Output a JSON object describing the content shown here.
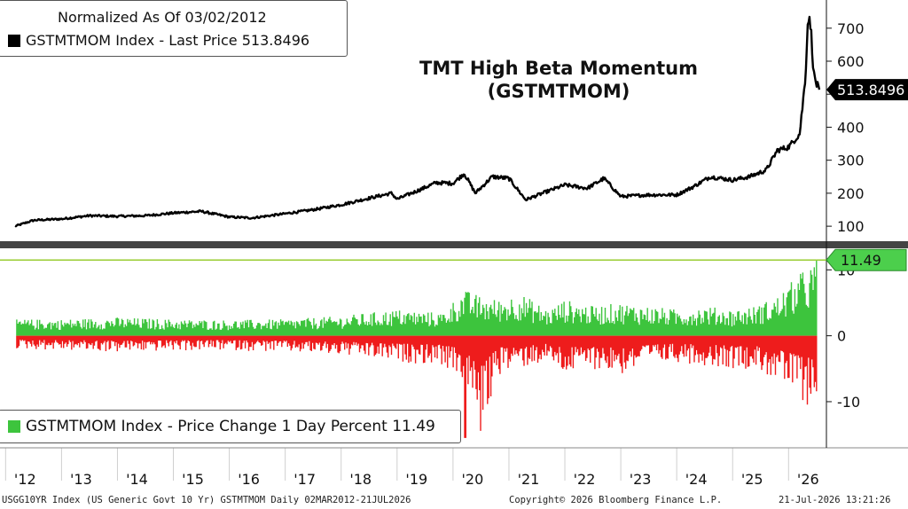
{
  "legend_top": {
    "line1": "Normalized As Of 03/02/2012",
    "line2": "GSTMTMOM Index - Last Price 513.8496"
  },
  "legend_bottom": {
    "line1": "GSTMTMOM Index - Price Change 1 Day Percent 11.49"
  },
  "footer": {
    "left": "USGG10YR Index (US Generic Govt 10 Yr) GSTMTMOM Daily 02MAR2012-21JUL2026",
    "center": "Copyright© 2026 Bloomberg Finance L.P.",
    "right": "21-Jul-2026 13:21:26"
  },
  "colors": {
    "price_line": "#000000",
    "up_bars": "#3dc43d",
    "down_bars": "#ee1c1c",
    "last_value_marker": "#000000",
    "change_marker": "#4ccf4c",
    "reference_line": "#9acd32",
    "divider": "#444444"
  },
  "chart_data": [
    {
      "type": "line",
      "title": "TMT High Beta Momentum",
      "subtitle": "(GSTMTMOM)",
      "series": [
        {
          "name": "GSTMTMOM Index - Last Price",
          "x": [
            2012.17,
            2012.5,
            2013.0,
            2013.5,
            2014.0,
            2014.5,
            2015.0,
            2015.5,
            2016.0,
            2016.4,
            2017.0,
            2017.5,
            2018.0,
            2018.5,
            2018.9,
            2019.0,
            2019.4,
            2019.7,
            2020.0,
            2020.2,
            2020.4,
            2020.7,
            2021.0,
            2021.3,
            2021.6,
            2022.0,
            2022.4,
            2022.7,
            2023.0,
            2023.5,
            2024.0,
            2024.3,
            2024.6,
            2025.0,
            2025.3,
            2025.6,
            2025.8,
            2026.0,
            2026.2,
            2026.3,
            2026.35,
            2026.4,
            2026.45,
            2026.5,
            2026.55
          ],
          "values": [
            100,
            118,
            122,
            132,
            130,
            132,
            140,
            145,
            128,
            125,
            138,
            150,
            165,
            185,
            200,
            182,
            210,
            232,
            230,
            260,
            200,
            250,
            245,
            180,
            200,
            225,
            215,
            245,
            190,
            195,
            195,
            220,
            250,
            240,
            250,
            270,
            330,
            340,
            380,
            550,
            740,
            700,
            560,
            530,
            513.8496
          ],
          "last_value": "513.8496"
        }
      ],
      "yticks": [
        "100",
        "200",
        "300",
        "400",
        "500",
        "600",
        "700"
      ],
      "ylim": [
        60,
        780
      ],
      "axis_side": "right"
    },
    {
      "type": "bar",
      "series": [
        {
          "name": "GSTMTMOM Index - Price Change 1 Day Percent",
          "up_envelope": {
            "x": [
              2012.2,
              2013.0,
              2014.0,
              2015.0,
              2016.0,
              2017.0,
              2018.0,
              2019.0,
              2019.8,
              2020.2,
              2020.5,
              2020.8,
              2021.2,
              2021.7,
              2022.0,
              2022.5,
              2023.0,
              2023.5,
              2024.0,
              2024.5,
              2025.0,
              2025.4,
              2025.8,
              2026.2,
              2026.5
            ],
            "values": [
              2.5,
              2.5,
              2.8,
              2.5,
              2.4,
              2.5,
              3.0,
              4.0,
              3.5,
              7.0,
              6.0,
              5.5,
              6.5,
              4.0,
              5.5,
              4.5,
              5.0,
              4.5,
              4.0,
              4.5,
              4.0,
              4.5,
              6.0,
              9.5,
              11.49
            ]
          },
          "down_envelope": {
            "x": [
              2012.2,
              2013.0,
              2014.0,
              2015.0,
              2016.0,
              2017.0,
              2018.0,
              2019.0,
              2019.8,
              2020.2,
              2020.5,
              2020.8,
              2021.2,
              2021.7,
              2022.0,
              2022.5,
              2023.0,
              2023.5,
              2024.0,
              2024.5,
              2025.0,
              2025.4,
              2025.8,
              2026.2,
              2026.5
            ],
            "values": [
              -2.0,
              -2.2,
              -2.5,
              -2.3,
              -2.2,
              -2.5,
              -3.0,
              -4.0,
              -4.5,
              -7.0,
              -15.5,
              -6.0,
              -5.0,
              -4.0,
              -6.0,
              -5.0,
              -6.0,
              -4.5,
              -4.0,
              -4.5,
              -5.0,
              -5.0,
              -7.0,
              -10.0,
              -11.5
            ]
          },
          "last_value": "11.49"
        }
      ],
      "yticks": [
        "-10",
        "0",
        "10"
      ],
      "ylim": [
        -17,
        13
      ],
      "axis_side": "right"
    }
  ],
  "x_axis": {
    "ticks": [
      "'12",
      "'13",
      "'14",
      "'15",
      "'16",
      "'17",
      "'18",
      "'19",
      "'20",
      "'21",
      "'22",
      "'23",
      "'24",
      "'25",
      "'26"
    ],
    "start_year": 2012,
    "end_year": 2026.55
  }
}
